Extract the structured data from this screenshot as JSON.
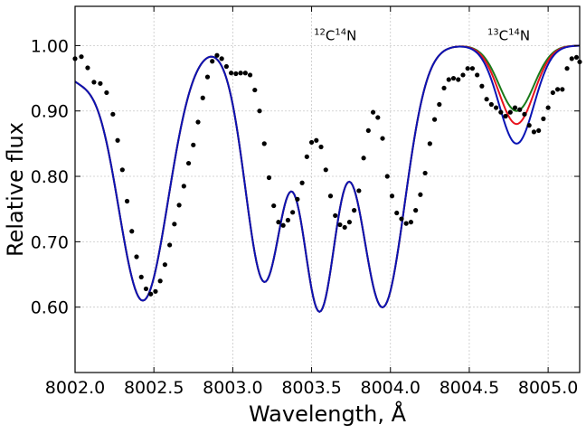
{
  "chart_data": {
    "type": "line",
    "title": "",
    "xlabel": "Wavelength, Å",
    "ylabel": "Relative flux",
    "xlim": [
      8002.0,
      8005.2
    ],
    "ylim": [
      0.5,
      1.06
    ],
    "xticks": [
      8002.0,
      8002.5,
      8003.0,
      8003.5,
      8004.0,
      8004.5,
      8005.0
    ],
    "xtick_labels": [
      "8002.0",
      "8002.5",
      "8003.0",
      "8003.5",
      "8004.0",
      "8004.5",
      "8005.0"
    ],
    "yticks": [
      0.6,
      0.7,
      0.8,
      0.9,
      1.0
    ],
    "ytick_labels": [
      "0.60",
      "0.70",
      "0.80",
      "0.90",
      "1.00"
    ],
    "grid": true,
    "annotations": [
      {
        "label_base1": "12",
        "label_el1": "C",
        "label_base2": "14",
        "label_el2": "N",
        "x": 8003.65,
        "y": 1.015
      },
      {
        "label_base1": "13",
        "label_el1": "C",
        "label_base2": "14",
        "label_el2": "N",
        "x": 8004.75,
        "y": 1.015
      }
    ],
    "series": [
      {
        "name": "observed",
        "kind": "scatter",
        "color": "#000000",
        "x": [
          8002.0,
          8002.04,
          8002.08,
          8002.12,
          8002.16,
          8002.2,
          8002.24,
          8002.27,
          8002.3,
          8002.33,
          8002.36,
          8002.39,
          8002.42,
          8002.45,
          8002.48,
          8002.51,
          8002.54,
          8002.57,
          8002.6,
          8002.63,
          8002.66,
          8002.69,
          8002.72,
          8002.75,
          8002.78,
          8002.81,
          8002.84,
          8002.87,
          8002.9,
          8002.93,
          8002.96,
          8002.99,
          8003.02,
          8003.05,
          8003.08,
          8003.11,
          8003.14,
          8003.17,
          8003.2,
          8003.23,
          8003.26,
          8003.29,
          8003.32,
          8003.35,
          8003.38,
          8003.41,
          8003.44,
          8003.47,
          8003.5,
          8003.53,
          8003.56,
          8003.59,
          8003.62,
          8003.65,
          8003.68,
          8003.71,
          8003.74,
          8003.77,
          8003.8,
          8003.83,
          8003.86,
          8003.89,
          8003.92,
          8003.95,
          8003.98,
          8004.01,
          8004.04,
          8004.07,
          8004.1,
          8004.13,
          8004.16,
          8004.19,
          8004.22,
          8004.25,
          8004.28,
          8004.31,
          8004.34,
          8004.37,
          8004.4,
          8004.43,
          8004.46,
          8004.49,
          8004.52,
          8004.55,
          8004.58,
          8004.61,
          8004.64,
          8004.67,
          8004.7,
          8004.73,
          8004.76,
          8004.79,
          8004.82,
          8004.85,
          8004.88,
          8004.91,
          8004.94,
          8004.97,
          8005.0,
          8005.03,
          8005.06,
          8005.09,
          8005.12,
          8005.15,
          8005.18,
          8005.2
        ],
        "y": [
          0.98,
          0.983,
          0.966,
          0.944,
          0.942,
          0.928,
          0.895,
          0.855,
          0.81,
          0.762,
          0.716,
          0.677,
          0.646,
          0.628,
          0.62,
          0.624,
          0.64,
          0.665,
          0.695,
          0.727,
          0.756,
          0.785,
          0.82,
          0.848,
          0.883,
          0.92,
          0.952,
          0.976,
          0.985,
          0.98,
          0.968,
          0.958,
          0.957,
          0.958,
          0.958,
          0.955,
          0.932,
          0.9,
          0.85,
          0.798,
          0.755,
          0.73,
          0.725,
          0.733,
          0.745,
          0.765,
          0.79,
          0.83,
          0.852,
          0.855,
          0.845,
          0.81,
          0.77,
          0.74,
          0.726,
          0.722,
          0.73,
          0.748,
          0.778,
          0.828,
          0.87,
          0.898,
          0.89,
          0.858,
          0.8,
          0.77,
          0.744,
          0.735,
          0.728,
          0.73,
          0.748,
          0.772,
          0.805,
          0.85,
          0.887,
          0.91,
          0.935,
          0.948,
          0.95,
          0.948,
          0.955,
          0.965,
          0.965,
          0.955,
          0.938,
          0.918,
          0.91,
          0.905,
          0.898,
          0.892,
          0.898,
          0.905,
          0.902,
          0.895,
          0.878,
          0.868,
          0.87,
          0.888,
          0.905,
          0.928,
          0.933,
          0.933,
          0.965,
          0.98,
          0.982,
          0.975
        ]
      },
      {
        "name": "model-green",
        "kind": "line",
        "color": "#1a7a1a",
        "mode": "green"
      },
      {
        "name": "model-red",
        "kind": "line",
        "color": "#e8141e",
        "mode": "red"
      },
      {
        "name": "model-blue",
        "kind": "line",
        "color": "#0a14b4",
        "mode": "blue"
      }
    ]
  }
}
